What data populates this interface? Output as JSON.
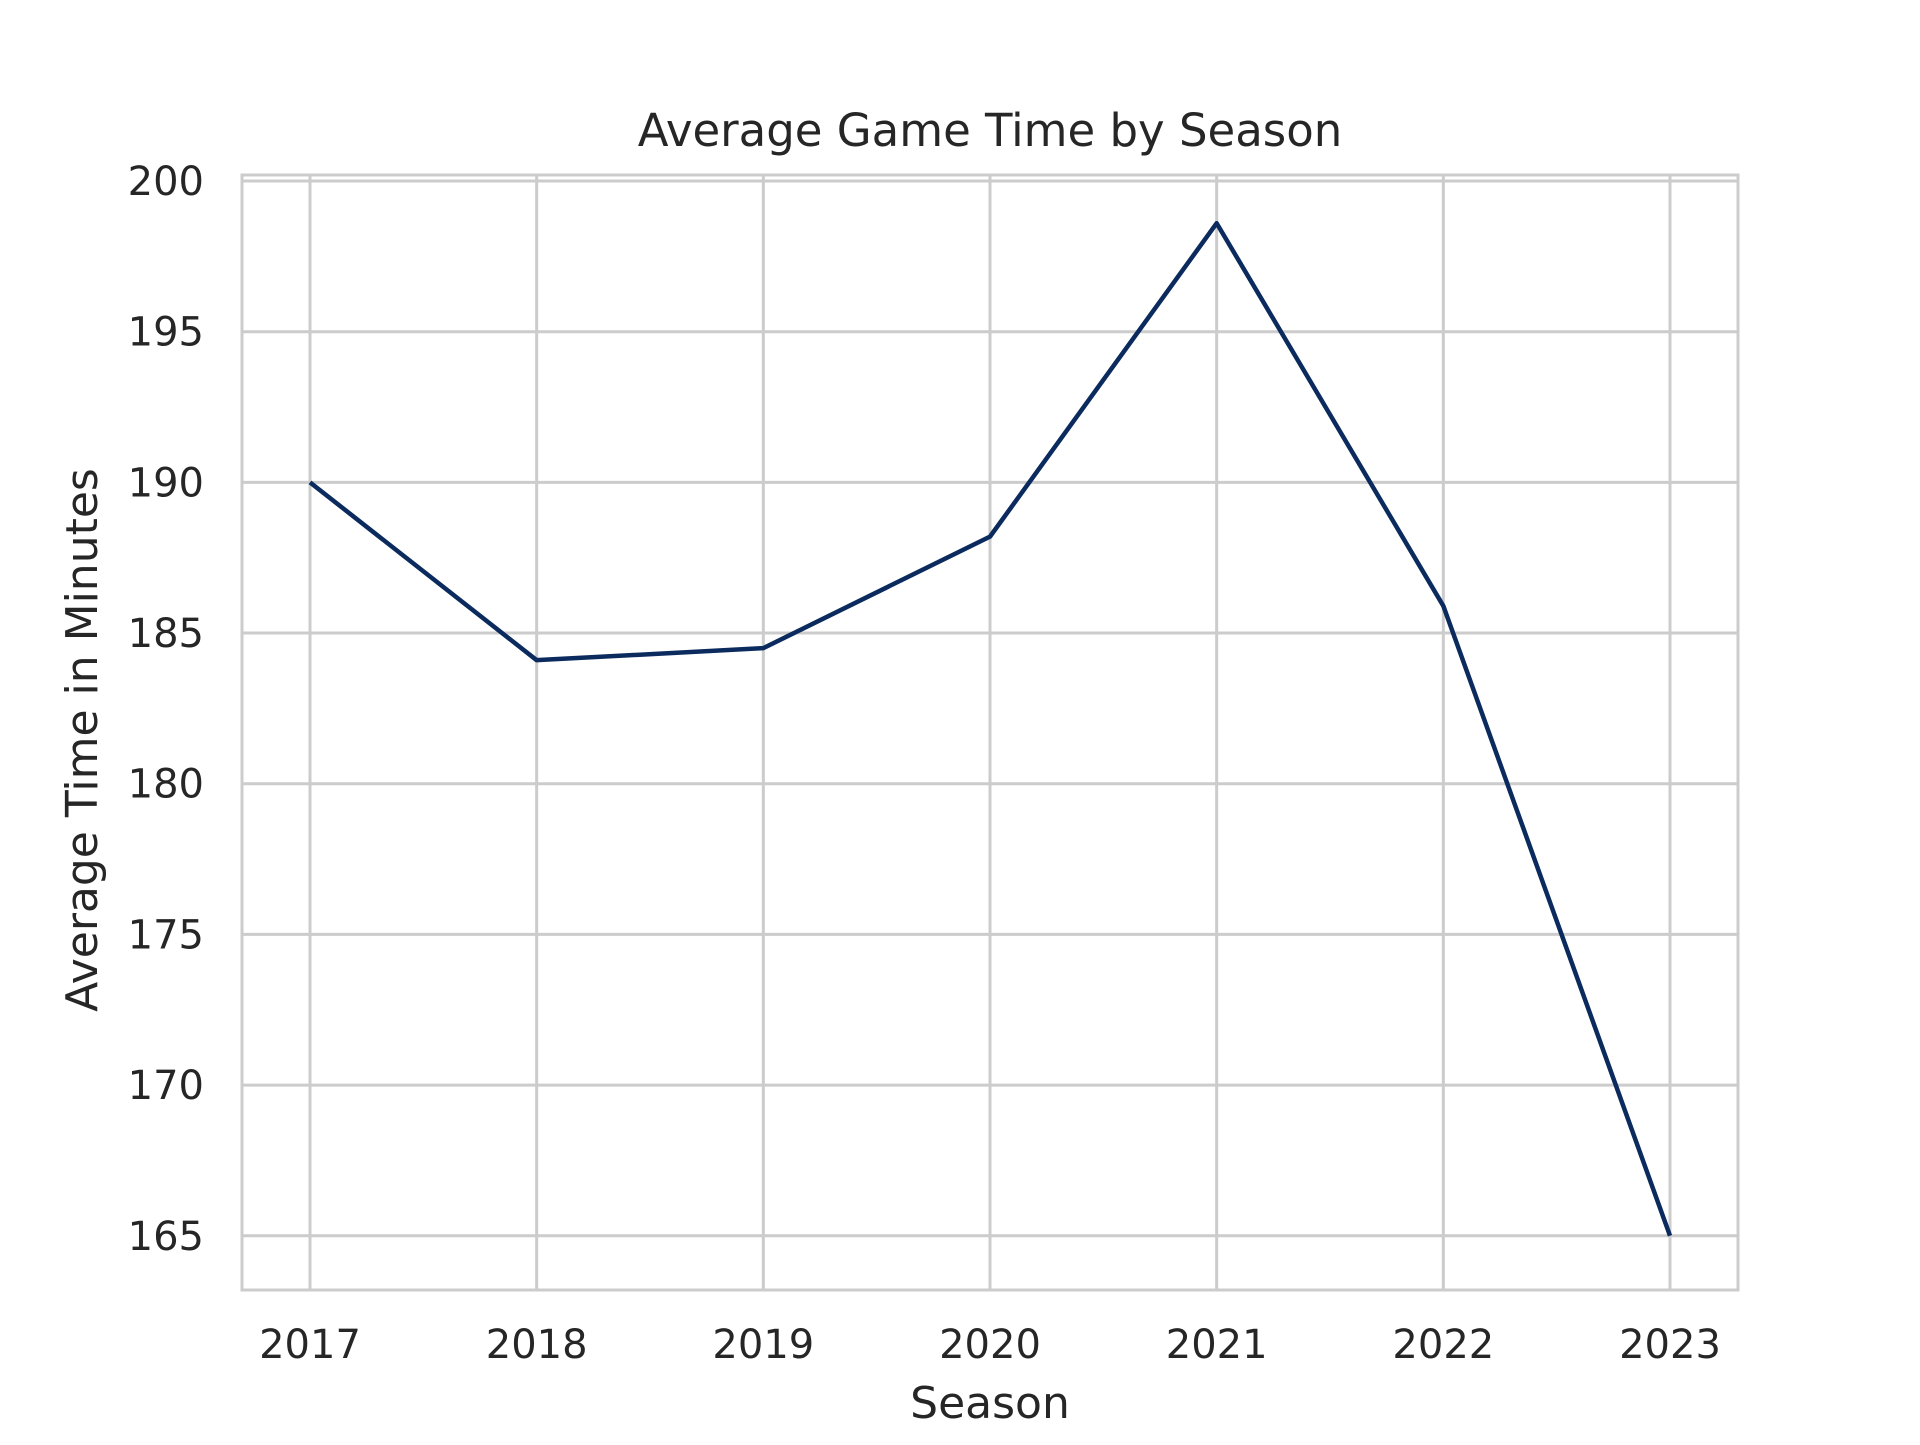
{
  "chart_data": {
    "type": "line",
    "title": "Average Game Time by Season",
    "xlabel": "Season",
    "ylabel": "Average Time in Minutes",
    "x": [
      "2017",
      "2018",
      "2019",
      "2020",
      "2021",
      "2022",
      "2023"
    ],
    "series": [
      {
        "values": [
          190.0,
          184.1,
          184.5,
          188.2,
          198.6,
          185.9,
          165.0
        ]
      }
    ],
    "ylim": [
      163.2,
      200.2
    ],
    "yticks": [
      165,
      170,
      175,
      180,
      185,
      190,
      195,
      200
    ],
    "grid": true,
    "line_color": "#0b2b5e",
    "grid_color": "#cccccc",
    "frame_color": "#cccccc"
  }
}
